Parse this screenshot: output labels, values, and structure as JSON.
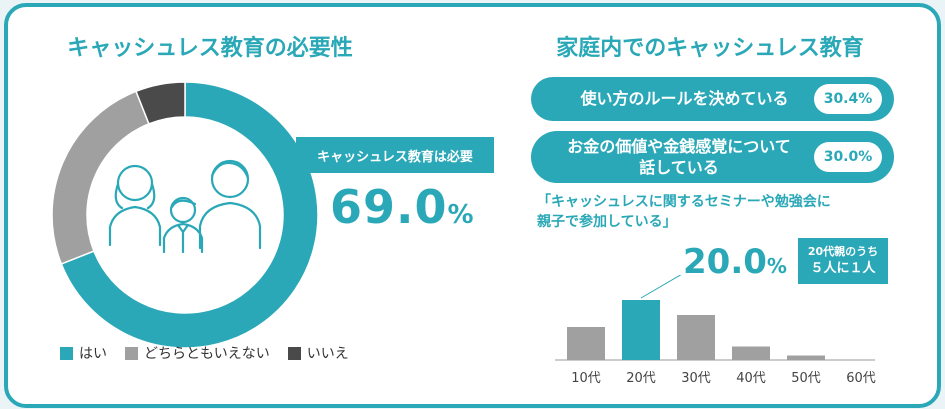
{
  "left": {
    "title": "キャッシュレス教育の必要性",
    "callout_label": "キャッシュレス教育は必要",
    "callout_value": "69.0",
    "callout_unit": "%",
    "legend": [
      {
        "label": "はい",
        "color": "#2aa8b7"
      },
      {
        "label": "どちらともいえない",
        "color": "#a0a0a0"
      },
      {
        "label": "いいえ",
        "color": "#4a4a4a"
      }
    ]
  },
  "right": {
    "title": "家庭内でのキャッシュレス教育",
    "pills": [
      {
        "label_lines": [
          "使い方のルールを決めている"
        ],
        "value": "30.4%"
      },
      {
        "label_lines": [
          "お金の価値や金銭感覚について",
          "話している"
        ],
        "value": "30.0%"
      }
    ],
    "quote_line1": "「キャッシュレスに関するセミナーや勉強会に",
    "quote_line2": "親子で参加している」",
    "bar_callout_value": "20.0",
    "bar_callout_unit": "%",
    "note_line1": "20代親のうち",
    "note_line2": "５人に１人"
  },
  "colors": {
    "accent": "#2aa8b7",
    "grey": "#a0a0a0",
    "dark": "#4a4a4a"
  },
  "icons": [
    "family-icon"
  ],
  "chart_data": [
    {
      "type": "pie",
      "title": "キャッシュレス教育の必要性",
      "categories": [
        "はい",
        "どちらともいえない",
        "いいえ"
      ],
      "values": [
        69.0,
        25.0,
        6.0
      ]
    },
    {
      "type": "bar",
      "title": "",
      "categories": [
        "10代",
        "20代",
        "30代",
        "40代",
        "50代",
        "60代"
      ],
      "values": [
        11,
        20.0,
        15,
        4.5,
        1.5,
        0
      ],
      "ylim": [
        0,
        25
      ]
    }
  ]
}
